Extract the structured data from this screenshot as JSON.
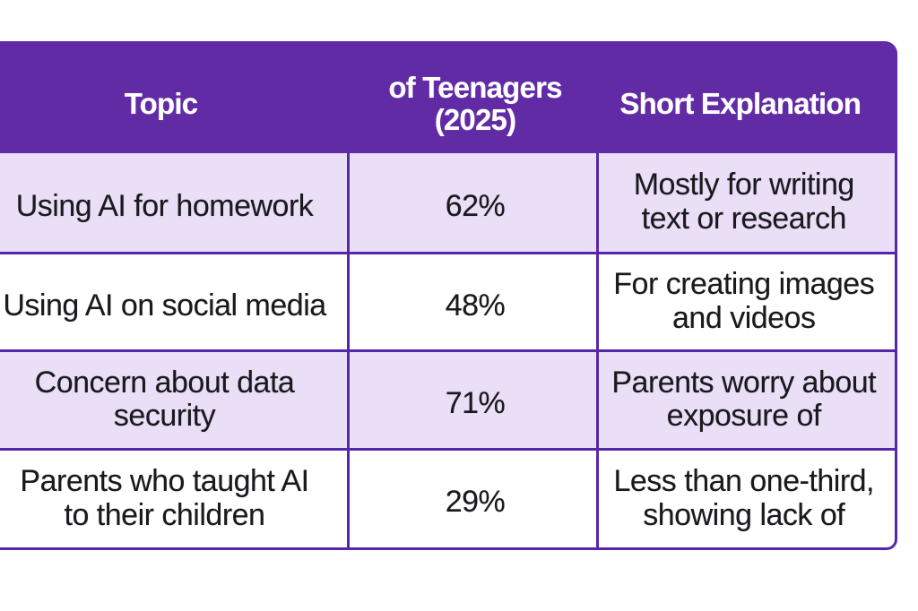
{
  "theme": {
    "bg": "#ffffff",
    "header-purple": "#612ba6",
    "line-purple": "#5627a8",
    "lavender": "#ebdef7",
    "row-white": "#ffffff",
    "ink": "#1a1a1e",
    "header-text": "#ffffff"
  },
  "table": {
    "columns": [
      {
        "id": "topic",
        "header": "Topic"
      },
      {
        "id": "share",
        "header": "of Teenagers\n(2025)"
      },
      {
        "id": "explanation",
        "header": "Short Explanation"
      }
    ],
    "rows": [
      {
        "topic": "Using AI for homework",
        "share": "62%",
        "explanation": "Mostly for writing\ntext or research"
      },
      {
        "topic": "Using AI on social media",
        "share": "48%",
        "explanation": "For creating images\nand videos"
      },
      {
        "topic": "Concern about data\nsecurity",
        "share": "71%",
        "explanation": "Parents worry about\nexposure of"
      },
      {
        "topic": "Parents who taught AI\nto their children",
        "share": "29%",
        "explanation": "Less than one-third,\nshowing lack of"
      }
    ]
  },
  "chart_data": {
    "type": "table",
    "title": "",
    "columns": [
      "Topic",
      "of Teenagers (2025)",
      "Short Explanation"
    ],
    "rows": [
      [
        "Using AI for homework",
        "62%",
        "Mostly for writing text or research"
      ],
      [
        "Using AI on social media",
        "48%",
        "For creating images and videos"
      ],
      [
        "Concern about data security",
        "71%",
        "Parents worry about exposure of"
      ],
      [
        "Parents who taught AI to their children",
        "29%",
        "Less than one-third, showing lack of"
      ]
    ]
  }
}
